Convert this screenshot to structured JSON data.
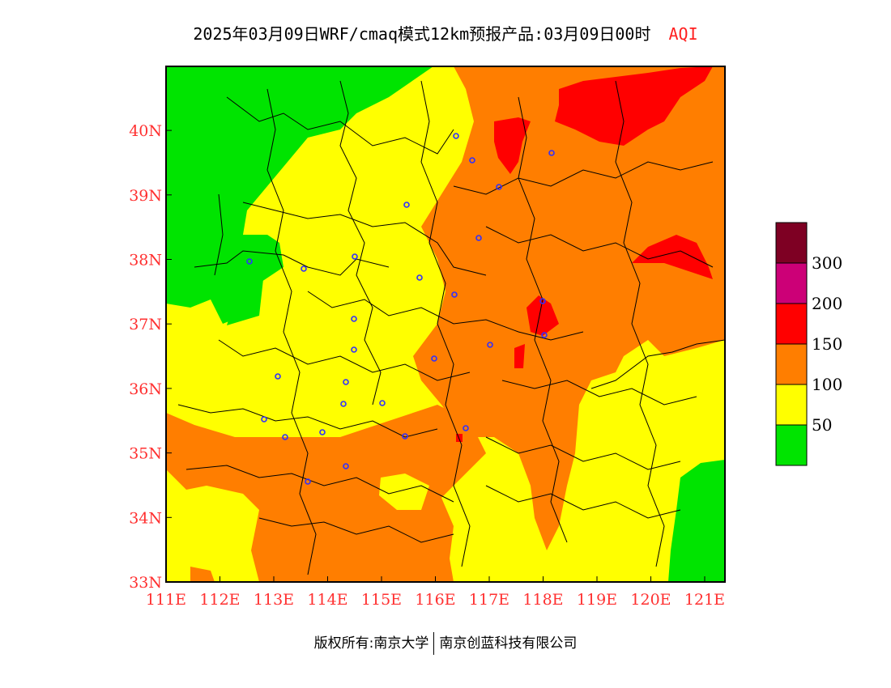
{
  "title": {
    "main": "2025年03月09日WRF/cmaq模式12km预报产品:03月09日00时",
    "product": "AQI"
  },
  "map": {
    "lon_labels": [
      "111E",
      "112E",
      "113E",
      "114E",
      "115E",
      "116E",
      "117E",
      "118E",
      "119E",
      "120E",
      "121E"
    ],
    "lat_labels": [
      "33N",
      "34N",
      "35N",
      "36N",
      "37N",
      "38N",
      "39N",
      "40N"
    ],
    "colors": {
      "green": "#00e400",
      "yellow": "#ffff00",
      "orange": "#ff7e00",
      "red": "#ff0000",
      "purple": "#cc0077",
      "maroon": "#7e0023",
      "city_marker": "#3030ff",
      "axis_label": "#ff3030"
    }
  },
  "legend": {
    "labels": [
      "50",
      "100",
      "150",
      "200",
      "300"
    ],
    "colors": [
      "#00e400",
      "#ffff00",
      "#ff7e00",
      "#ff0000",
      "#cc0077",
      "#7e0023"
    ]
  },
  "footer": {
    "left": "版权所有:南京大学",
    "right": "南京创蓝科技有限公司"
  }
}
